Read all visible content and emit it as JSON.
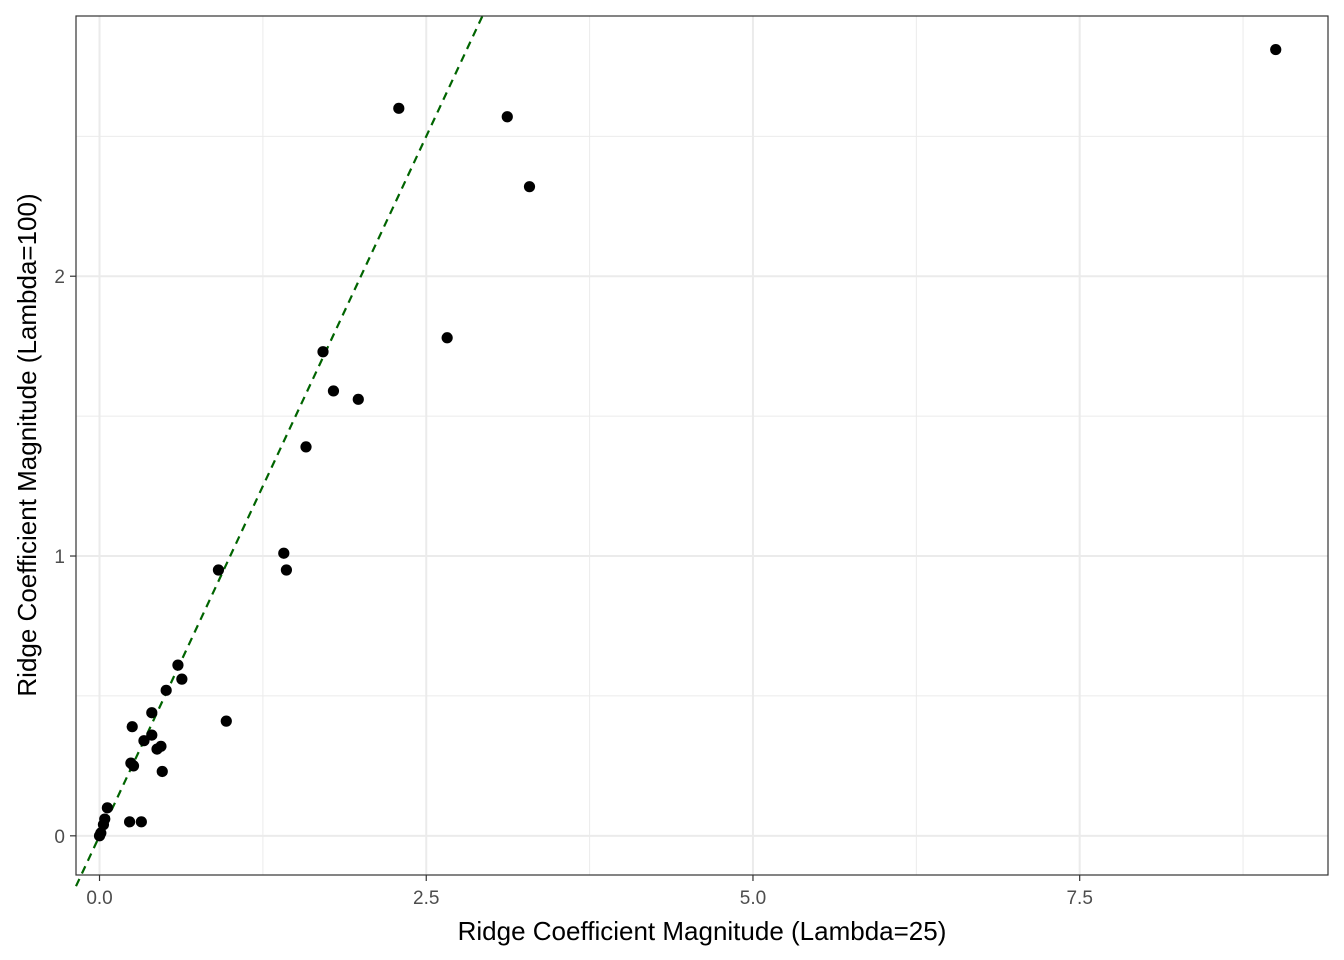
{
  "chart_data": {
    "type": "scatter",
    "title": "",
    "xlabel": "Ridge Coefficient Magnitude (Lambda=25)",
    "ylabel": "Ridge Coefficient Magnitude (Lambda=100)",
    "xlim": [
      -0.18,
      9.4
    ],
    "ylim": [
      -0.14,
      2.93
    ],
    "x_major_ticks": [
      0.0,
      2.5,
      5.0,
      7.5
    ],
    "x_tick_labels": [
      "0.0",
      "2.5",
      "5.0",
      "7.5"
    ],
    "x_minor_ticks": [
      1.25,
      3.75,
      6.25,
      8.75
    ],
    "y_major_ticks": [
      0,
      1,
      2
    ],
    "y_tick_labels": [
      "0",
      "1",
      "2"
    ],
    "y_minor_ticks": [
      0.5,
      1.5,
      2.5
    ],
    "grid": true,
    "points": [
      {
        "x": 0.0,
        "y": 0.0
      },
      {
        "x": 0.01,
        "y": 0.01
      },
      {
        "x": 0.03,
        "y": 0.04
      },
      {
        "x": 0.04,
        "y": 0.06
      },
      {
        "x": 0.06,
        "y": 0.1
      },
      {
        "x": 0.23,
        "y": 0.05
      },
      {
        "x": 0.32,
        "y": 0.05
      },
      {
        "x": 0.24,
        "y": 0.26
      },
      {
        "x": 0.26,
        "y": 0.25
      },
      {
        "x": 0.25,
        "y": 0.39
      },
      {
        "x": 0.34,
        "y": 0.34
      },
      {
        "x": 0.4,
        "y": 0.36
      },
      {
        "x": 0.4,
        "y": 0.44
      },
      {
        "x": 0.44,
        "y": 0.31
      },
      {
        "x": 0.47,
        "y": 0.32
      },
      {
        "x": 0.48,
        "y": 0.23
      },
      {
        "x": 0.51,
        "y": 0.52
      },
      {
        "x": 0.6,
        "y": 0.61
      },
      {
        "x": 0.63,
        "y": 0.56
      },
      {
        "x": 0.91,
        "y": 0.95
      },
      {
        "x": 0.97,
        "y": 0.41
      },
      {
        "x": 1.41,
        "y": 1.01
      },
      {
        "x": 1.43,
        "y": 0.95
      },
      {
        "x": 1.58,
        "y": 1.39
      },
      {
        "x": 1.71,
        "y": 1.73
      },
      {
        "x": 1.79,
        "y": 1.59
      },
      {
        "x": 1.98,
        "y": 1.56
      },
      {
        "x": 2.29,
        "y": 2.6
      },
      {
        "x": 2.66,
        "y": 1.78
      },
      {
        "x": 3.12,
        "y": 2.57
      },
      {
        "x": 3.29,
        "y": 2.32
      },
      {
        "x": 9.0,
        "y": 2.81
      }
    ],
    "reference_line": {
      "slope": 1,
      "intercept": 0,
      "style": "dashed",
      "color": "#006400"
    },
    "point_color": "#000000",
    "gridline_color": "#ebebeb",
    "panel_border_color": "#333333"
  }
}
